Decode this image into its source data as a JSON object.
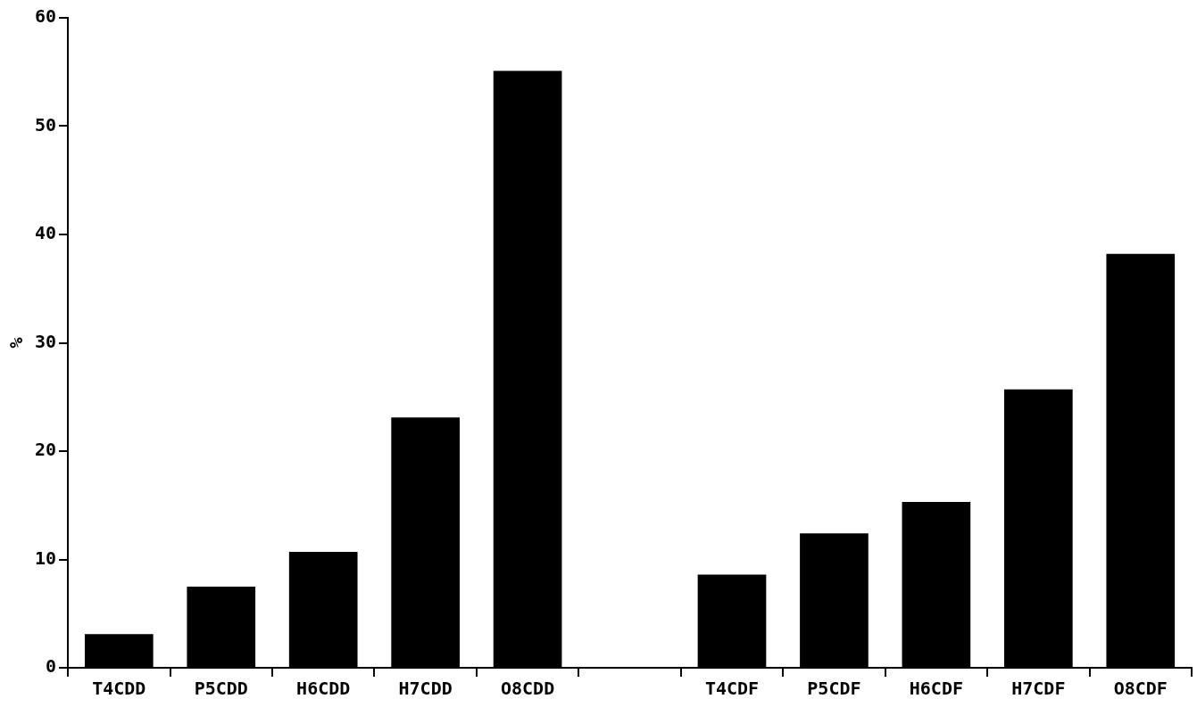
{
  "chart_data": {
    "type": "bar",
    "ylabel": "%",
    "categories": [
      "T4CDD",
      "P5CDD",
      "H6CDD",
      "H7CDD",
      "O8CDD",
      null,
      "T4CDF",
      "P5CDF",
      "H6CDF",
      "H7CDF",
      "O8CDF"
    ],
    "values": [
      3.1,
      7.5,
      10.7,
      23.1,
      55.1,
      null,
      8.6,
      12.4,
      15.3,
      25.7,
      38.2
    ],
    "color": "#000000",
    "ylim": [
      0,
      60
    ],
    "yticks": [
      0,
      10,
      20,
      30,
      40,
      50,
      60
    ],
    "grid": false,
    "legend": false
  }
}
